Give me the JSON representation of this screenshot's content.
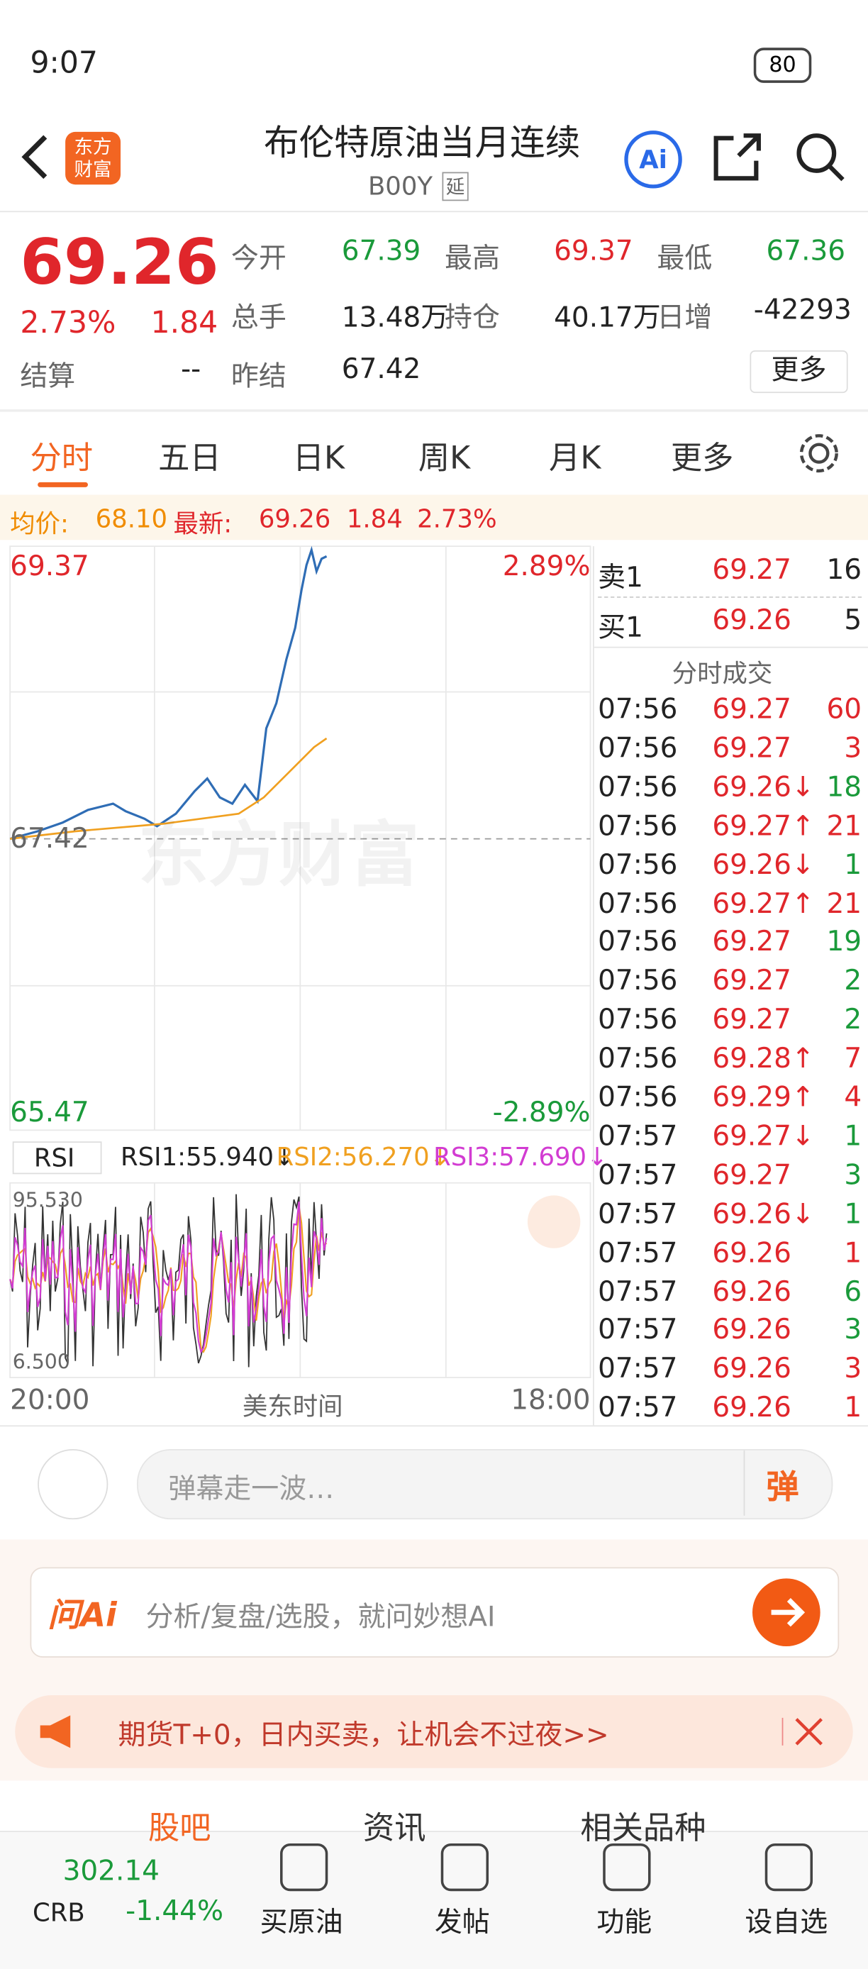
{
  "status_bar": {
    "time": "9:07",
    "battery": "80"
  },
  "header": {
    "logo": "东方财富",
    "title": "布伦特原油当月连续",
    "code": "B00Y",
    "tag": "延",
    "ai": "Ai"
  },
  "quote": {
    "price": "69.26",
    "change_pct": "2.73%",
    "change": "1.84",
    "more": "更多",
    "fields": [
      {
        "label": "今开",
        "value": "67.39",
        "color": "green"
      },
      {
        "label": "最高",
        "value": "69.37",
        "color": "red"
      },
      {
        "label": "最低",
        "value": "67.36",
        "color": "green"
      },
      {
        "label": "总手",
        "value": "13.48万",
        "color": "black"
      },
      {
        "label": "持仓",
        "value": "40.17万",
        "color": "black"
      },
      {
        "label": "日增",
        "value": "-42293",
        "color": "black"
      },
      {
        "label": "结算",
        "value": "--",
        "color": "black"
      },
      {
        "label": "昨结",
        "value": "67.42",
        "color": "black"
      }
    ]
  },
  "tabs": [
    "分时",
    "五日",
    "日K",
    "周K",
    "月K",
    "更多"
  ],
  "info_line": {
    "avg_label": "均价:",
    "avg": "68.10",
    "latest_label": "最新:",
    "latest": "69.26",
    "change": "1.84",
    "change_pct": "2.73%"
  },
  "chart": {
    "y_top": "69.37",
    "y_mid": "67.42",
    "y_bottom": "65.47",
    "pct_top": "2.89%",
    "pct_bottom": "-2.89%",
    "watermark": "东方财富"
  },
  "rsi": {
    "label": "RSI",
    "rsi1": "RSI1:55.940↓",
    "rsi2": "RSI2:56.270↓",
    "rsi3": "RSI3:57.690↓",
    "top": "95.530",
    "bottom": "6.500"
  },
  "x_axis": {
    "start": "20:00",
    "mid": "美东时间",
    "end": "18:00"
  },
  "order_book": {
    "sell": {
      "label": "卖1",
      "price": "69.27",
      "volume": "16"
    },
    "buy": {
      "label": "买1",
      "price": "69.26",
      "volume": "5"
    },
    "title": "分时成交"
  },
  "trades": [
    {
      "time": "07:56",
      "price": "69.27",
      "volume": "60",
      "vol_color": "red"
    },
    {
      "time": "07:56",
      "price": "69.27",
      "volume": "3",
      "vol_color": "red"
    },
    {
      "time": "07:56",
      "price": "69.26↓",
      "volume": "18",
      "vol_color": "green"
    },
    {
      "time": "07:56",
      "price": "69.27↑",
      "volume": "21",
      "vol_color": "red"
    },
    {
      "time": "07:56",
      "price": "69.26↓",
      "volume": "1",
      "vol_color": "green"
    },
    {
      "time": "07:56",
      "price": "69.27↑",
      "volume": "21",
      "vol_color": "red"
    },
    {
      "time": "07:56",
      "price": "69.27",
      "volume": "19",
      "vol_color": "green"
    },
    {
      "time": "07:56",
      "price": "69.27",
      "volume": "2",
      "vol_color": "green"
    },
    {
      "time": "07:56",
      "price": "69.27",
      "volume": "2",
      "vol_color": "green"
    },
    {
      "time": "07:56",
      "price": "69.28↑",
      "volume": "7",
      "vol_color": "red"
    },
    {
      "time": "07:56",
      "price": "69.29↑",
      "volume": "4",
      "vol_color": "red"
    },
    {
      "time": "07:57",
      "price": "69.27↓",
      "volume": "1",
      "vol_color": "green"
    },
    {
      "time": "07:57",
      "price": "69.27",
      "volume": "3",
      "vol_color": "green"
    },
    {
      "time": "07:57",
      "price": "69.26↓",
      "volume": "1",
      "vol_color": "green"
    },
    {
      "time": "07:57",
      "price": "69.26",
      "volume": "1",
      "vol_color": "red"
    },
    {
      "time": "07:57",
      "price": "69.26",
      "volume": "6",
      "vol_color": "green"
    },
    {
      "time": "07:57",
      "price": "69.26",
      "volume": "3",
      "vol_color": "green"
    },
    {
      "time": "07:57",
      "price": "69.26",
      "volume": "3",
      "vol_color": "red"
    },
    {
      "time": "07:57",
      "price": "69.26",
      "volume": "1",
      "vol_color": "red"
    }
  ],
  "comment_bar": {
    "placeholder": "弹幕走一波…",
    "button": "弹"
  },
  "ai_bar": {
    "logo": "问Ai",
    "placeholder": "分析/复盘/选股，就问妙想AI"
  },
  "promo": {
    "text": "期货T+0，日内买卖，让机会不过夜>>"
  },
  "section_tabs": [
    "股吧",
    "资讯",
    "相关品种"
  ],
  "bottom_nav": {
    "ticker": {
      "value": "302.14",
      "name": "CRB",
      "change_pct": "-1.44%"
    },
    "items": [
      "买原油",
      "发帖",
      "功能",
      "设自选"
    ]
  }
}
